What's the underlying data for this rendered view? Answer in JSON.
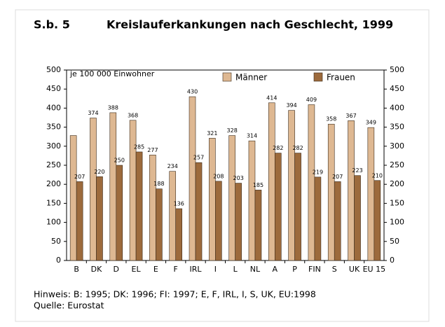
{
  "header": "S.b. 5",
  "chart_data": {
    "type": "bar",
    "title": "Kreislauferkankungen nach Geschlecht, 1999",
    "annotation": "je 100 000 Einwohner",
    "categories": [
      "B",
      "DK",
      "D",
      "EL",
      "E",
      "F",
      "IRL",
      "I",
      "L",
      "NL",
      "A",
      "P",
      "FIN",
      "S",
      "UK",
      "EU 15"
    ],
    "series": [
      {
        "name": "Männer",
        "color": "#deb892",
        "values": [
          328,
          374,
          388,
          368,
          277,
          234,
          430,
          321,
          328,
          314,
          414,
          394,
          409,
          358,
          367,
          349
        ],
        "value_labels": [
          null,
          "374",
          "388",
          "368",
          "277",
          "234",
          "430",
          "321",
          "328",
          "314",
          "414",
          "394",
          "409",
          "358",
          "367",
          "349"
        ]
      },
      {
        "name": "Frauen",
        "color": "#9c6a3c",
        "values": [
          207,
          220,
          250,
          285,
          188,
          136,
          257,
          208,
          203,
          185,
          282,
          282,
          219,
          207,
          223,
          210
        ]
      }
    ],
    "ylim": [
      0,
      500
    ],
    "yticks": [
      0,
      50,
      100,
      150,
      200,
      250,
      300,
      350,
      400,
      450,
      500
    ],
    "y2lim": [
      0,
      500
    ],
    "y2ticks": [
      0,
      50,
      100,
      150,
      200,
      250,
      300,
      350,
      400,
      450,
      500
    ],
    "legend": "top-right"
  },
  "notes": [
    "Hinweis: B: 1995; DK: 1996; FI: 1997; E, F, IRL, I, S, UK, EU:1998",
    "Quelle: Eurostat"
  ]
}
